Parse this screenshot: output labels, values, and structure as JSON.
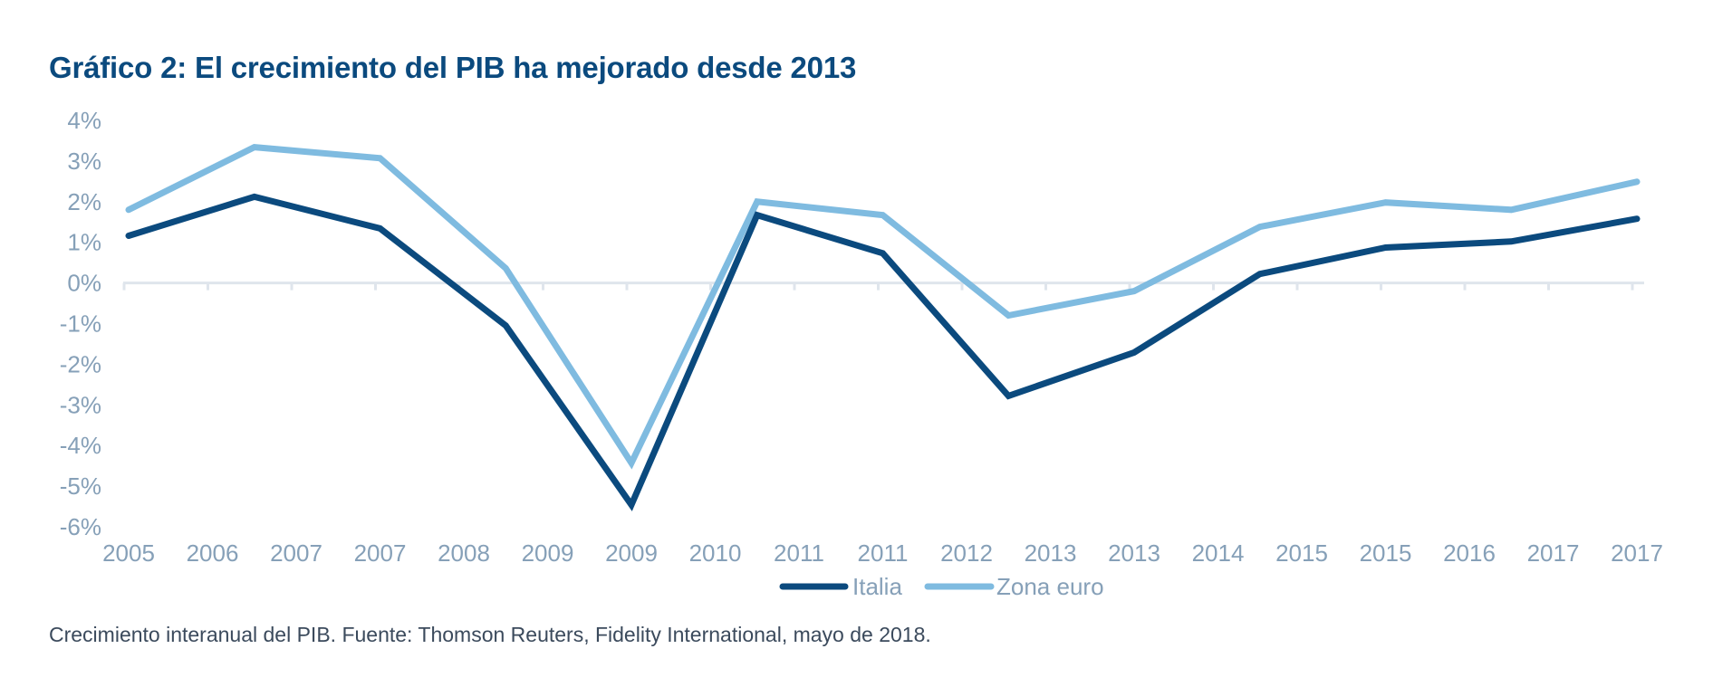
{
  "title": "Gráfico 2: El crecimiento del PIB ha mejorado desde 2013",
  "footer": "Crecimiento interanual del PIB. Fuente: Thomson Reuters, Fidelity International, mayo de 2018.",
  "chart_data": {
    "type": "line",
    "title": "Gráfico 2: El crecimiento del PIB ha mejorado desde 2013",
    "xlabel": "",
    "ylabel": "",
    "ylim": [
      -6,
      4
    ],
    "y_ticks": [
      "4%",
      "3%",
      "2%",
      "1%",
      "0%",
      "-1%",
      "-2%",
      "-3%",
      "-4%",
      "-5%",
      "-6%"
    ],
    "y_tick_values": [
      4,
      3,
      2,
      1,
      0,
      -1,
      -2,
      -3,
      -4,
      -5,
      -6
    ],
    "x_tick_labels": [
      "2005",
      "2006",
      "2007",
      "2007",
      "2008",
      "2009",
      "2009",
      "2010",
      "2011",
      "2011",
      "2012",
      "2013",
      "2013",
      "2014",
      "2015",
      "2015",
      "2016",
      "2017",
      "2017"
    ],
    "x_observations": 13,
    "grid": false,
    "legend_position": "bottom-center",
    "series": [
      {
        "name": "Italia",
        "color": "#0b4a7e",
        "values": [
          1.16,
          2.12,
          1.34,
          -1.05,
          -5.46,
          1.67,
          0.73,
          -2.78,
          -1.71,
          0.22,
          0.87,
          1.02,
          1.58
        ]
      },
      {
        "name": "Zona euro",
        "color": "#7fbbe0",
        "values": [
          1.8,
          3.34,
          3.07,
          0.36,
          -4.43,
          2.0,
          1.67,
          -0.8,
          -0.2,
          1.38,
          1.98,
          1.8,
          2.49
        ]
      }
    ],
    "unit": "%",
    "axis_color": "#dfe5ec",
    "tick_label_color": "#86a0b8"
  }
}
